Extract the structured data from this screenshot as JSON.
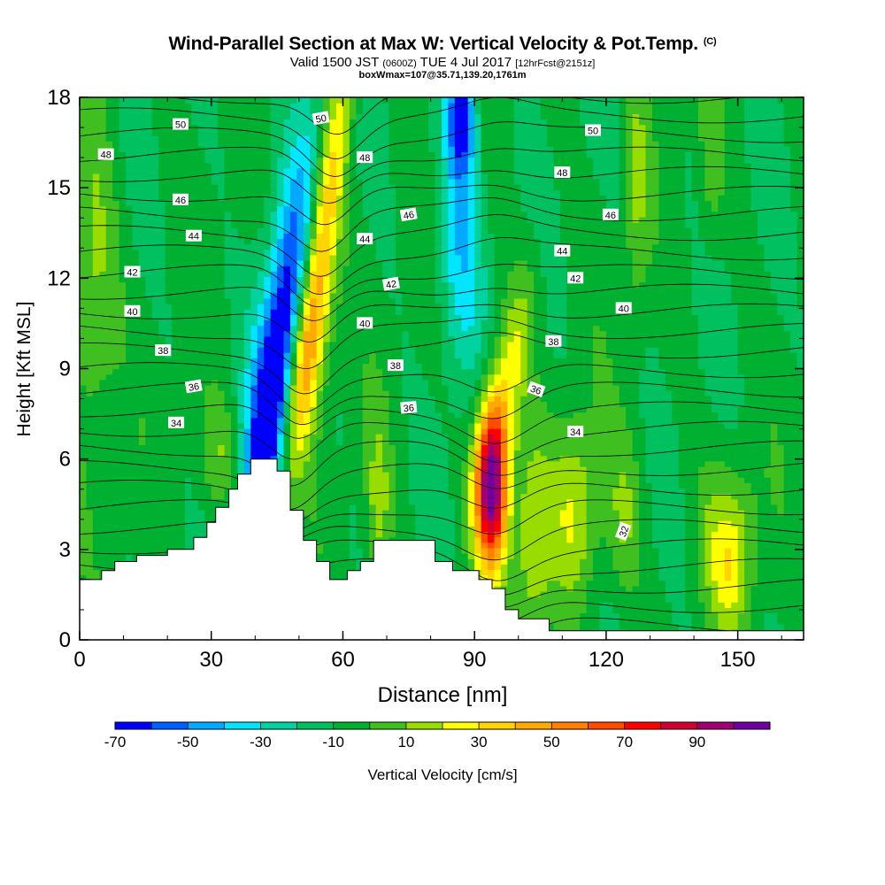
{
  "title": {
    "main": "Wind-Parallel Section at Max W: Vertical Velocity & Pot.Temp.",
    "copyright": "(C)",
    "valid_prefix": "Valid 1500 JST",
    "utc": "(0600Z)",
    "date": "TUE 4 Jul 2017",
    "forecast": "[12hrFcst@2151z]",
    "wmax": "boxWmax=107@35.71,139.20,1761m"
  },
  "chart_data": {
    "type": "heatmap",
    "xlabel": "Distance [nm]",
    "ylabel": "Height [Kft MSL]",
    "xlim": [
      0,
      165
    ],
    "ylim": [
      0,
      18
    ],
    "x_ticks": [
      0,
      30,
      60,
      90,
      120,
      150
    ],
    "y_ticks": [
      0,
      3,
      6,
      9,
      12,
      15,
      18
    ],
    "colorbar": {
      "label": "Vertical Velocity [cm/s]",
      "bounds": [
        -70,
        -60,
        -50,
        -40,
        -30,
        -20,
        -10,
        0,
        10,
        20,
        30,
        40,
        50,
        60,
        70,
        80,
        90,
        100
      ],
      "tick_labels": [
        -70,
        -50,
        -30,
        -10,
        10,
        30,
        50,
        70,
        90
      ],
      "colors": [
        "#0000ff",
        "#0060ff",
        "#00aaff",
        "#00e6ff",
        "#00d2a0",
        "#00c060",
        "#00b030",
        "#40c020",
        "#99dd00",
        "#ffff00",
        "#ffd400",
        "#ffaa00",
        "#ff8000",
        "#ff4c00",
        "#ff0000",
        "#d00030",
        "#a00070",
        "#7000a0"
      ]
    },
    "terrain": [
      [
        0,
        2.0
      ],
      [
        5,
        2.0
      ],
      [
        5,
        2.3
      ],
      [
        8,
        2.3
      ],
      [
        8,
        2.6
      ],
      [
        13,
        2.6
      ],
      [
        13,
        2.8
      ],
      [
        20,
        2.8
      ],
      [
        20,
        3.0
      ],
      [
        26,
        3.0
      ],
      [
        26,
        3.4
      ],
      [
        29,
        3.4
      ],
      [
        29,
        3.9
      ],
      [
        31,
        3.9
      ],
      [
        31,
        4.4
      ],
      [
        34,
        4.4
      ],
      [
        34,
        5.0
      ],
      [
        36,
        5.0
      ],
      [
        36,
        5.5
      ],
      [
        39,
        5.5
      ],
      [
        39,
        6.0
      ],
      [
        45,
        6.0
      ],
      [
        45,
        5.6
      ],
      [
        48,
        5.6
      ],
      [
        48,
        4.3
      ],
      [
        51,
        4.3
      ],
      [
        51,
        3.3
      ],
      [
        54,
        3.3
      ],
      [
        54,
        2.6
      ],
      [
        57,
        2.6
      ],
      [
        57,
        2.0
      ],
      [
        61,
        2.0
      ],
      [
        61,
        2.3
      ],
      [
        64,
        2.3
      ],
      [
        64,
        2.6
      ],
      [
        67,
        2.6
      ],
      [
        67,
        3.3
      ],
      [
        81,
        3.3
      ],
      [
        81,
        2.6
      ],
      [
        85,
        2.6
      ],
      [
        85,
        2.3
      ],
      [
        91,
        2.3
      ],
      [
        91,
        2.0
      ],
      [
        94,
        2.0
      ],
      [
        94,
        1.7
      ],
      [
        97,
        1.7
      ],
      [
        97,
        1.0
      ],
      [
        100,
        1.0
      ],
      [
        100,
        0.7
      ],
      [
        107,
        0.7
      ],
      [
        107,
        0.3
      ],
      [
        165,
        0.3
      ]
    ],
    "theta_contours": [
      {
        "label": "32",
        "pos": [
          124,
          3.6
        ],
        "rot": -70
      },
      {
        "label": "34",
        "pos": [
          22,
          7.2
        ],
        "rot": 0
      },
      {
        "label": "34",
        "pos": [
          113,
          6.9
        ],
        "rot": 0
      },
      {
        "label": "36",
        "pos": [
          26,
          8.4
        ],
        "rot": -10
      },
      {
        "label": "36",
        "pos": [
          75,
          7.7
        ],
        "rot": -5
      },
      {
        "label": "36",
        "pos": [
          104,
          8.3
        ],
        "rot": 20
      },
      {
        "label": "38",
        "pos": [
          19,
          9.6
        ],
        "rot": 0
      },
      {
        "label": "38",
        "pos": [
          72,
          9.1
        ],
        "rot": 0
      },
      {
        "label": "38",
        "pos": [
          108,
          9.9
        ],
        "rot": 0
      },
      {
        "label": "40",
        "pos": [
          12,
          10.9
        ],
        "rot": 0
      },
      {
        "label": "40",
        "pos": [
          65,
          10.5
        ],
        "rot": 0
      },
      {
        "label": "40",
        "pos": [
          124,
          11.0
        ],
        "rot": 0
      },
      {
        "label": "42",
        "pos": [
          12,
          12.2
        ],
        "rot": 0
      },
      {
        "label": "42",
        "pos": [
          71,
          11.8
        ],
        "rot": -10
      },
      {
        "label": "42",
        "pos": [
          113,
          12.0
        ],
        "rot": 0
      },
      {
        "label": "44",
        "pos": [
          26,
          13.4
        ],
        "rot": 0
      },
      {
        "label": "44",
        "pos": [
          65,
          13.3
        ],
        "rot": 0
      },
      {
        "label": "44",
        "pos": [
          110,
          12.9
        ],
        "rot": 0
      },
      {
        "label": "46",
        "pos": [
          23,
          14.6
        ],
        "rot": 0
      },
      {
        "label": "46",
        "pos": [
          75,
          14.1
        ],
        "rot": -10
      },
      {
        "label": "46",
        "pos": [
          121,
          14.1
        ],
        "rot": 0
      },
      {
        "label": "48",
        "pos": [
          6,
          16.1
        ],
        "rot": 0
      },
      {
        "label": "48",
        "pos": [
          65,
          16.0
        ],
        "rot": 0
      },
      {
        "label": "48",
        "pos": [
          110,
          15.5
        ],
        "rot": 0
      },
      {
        "label": "50",
        "pos": [
          23,
          17.1
        ],
        "rot": 0
      },
      {
        "label": "50",
        "pos": [
          55,
          17.3
        ],
        "rot": -10
      },
      {
        "label": "50",
        "pos": [
          117,
          16.9
        ],
        "rot": 0
      }
    ]
  }
}
